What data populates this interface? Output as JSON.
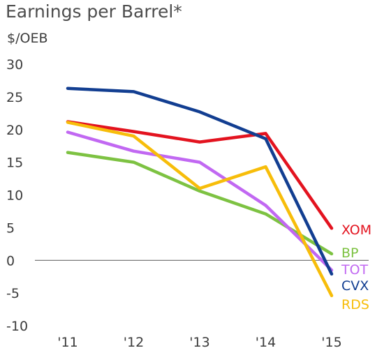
{
  "chart_data": {
    "type": "line",
    "title": "Earnings per Barrel*",
    "ylabel": "$/OEB",
    "xlabel": "",
    "x": [
      "'11",
      "'12",
      "'13",
      "'14",
      "'15"
    ],
    "ylim": [
      -10,
      30
    ],
    "yticks": [
      30,
      25,
      20,
      15,
      10,
      5,
      0,
      -5,
      -10
    ],
    "grid": false,
    "zero_line": true,
    "legend_placement": "right-end-labels",
    "series": [
      {
        "name": "XOM",
        "color": "#e3131f",
        "values": [
          21.2,
          19.7,
          18.1,
          19.4,
          4.9
        ]
      },
      {
        "name": "BP",
        "color": "#7dc242",
        "values": [
          16.5,
          15.0,
          10.6,
          7.1,
          1.0
        ]
      },
      {
        "name": "TOT",
        "color": "#c168f2",
        "values": [
          19.6,
          16.7,
          15.0,
          8.4,
          -1.5
        ]
      },
      {
        "name": "CVX",
        "color": "#123e91",
        "values": [
          26.3,
          25.8,
          22.7,
          18.6,
          -2.1
        ]
      },
      {
        "name": "RDS",
        "color": "#f7bd0a",
        "values": [
          21.1,
          19.0,
          11.0,
          14.3,
          -5.4
        ]
      }
    ]
  }
}
